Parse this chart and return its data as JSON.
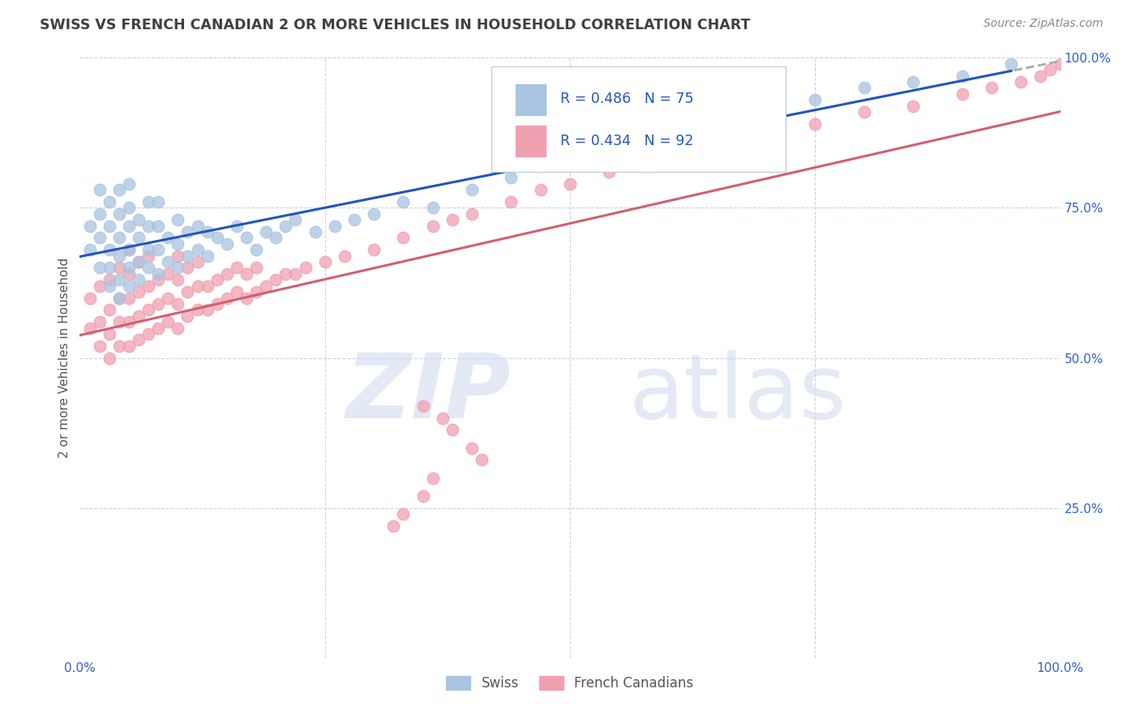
{
  "title": "SWISS VS FRENCH CANADIAN 2 OR MORE VEHICLES IN HOUSEHOLD CORRELATION CHART",
  "source": "Source: ZipAtlas.com",
  "ylabel": "2 or more Vehicles in Household",
  "xlim": [
    0.0,
    1.0
  ],
  "ylim": [
    0.0,
    1.0
  ],
  "swiss_R": 0.486,
  "swiss_N": 75,
  "french_R": 0.434,
  "french_N": 92,
  "swiss_color": "#a8c4e0",
  "french_color": "#f0a0b0",
  "swiss_line_color": "#2255bb",
  "french_line_color": "#d06070",
  "legend_text_color": "#3060d0",
  "title_color": "#404040",
  "grid_color": "#c8d4e8",
  "background_color": "#ffffff",
  "swiss_x": [
    0.01,
    0.01,
    0.02,
    0.02,
    0.02,
    0.02,
    0.03,
    0.03,
    0.03,
    0.03,
    0.03,
    0.04,
    0.04,
    0.04,
    0.04,
    0.04,
    0.04,
    0.05,
    0.05,
    0.05,
    0.05,
    0.05,
    0.05,
    0.06,
    0.06,
    0.06,
    0.06,
    0.07,
    0.07,
    0.07,
    0.07,
    0.08,
    0.08,
    0.08,
    0.08,
    0.09,
    0.09,
    0.1,
    0.1,
    0.1,
    0.11,
    0.11,
    0.12,
    0.12,
    0.13,
    0.13,
    0.14,
    0.15,
    0.16,
    0.17,
    0.18,
    0.19,
    0.2,
    0.21,
    0.22,
    0.24,
    0.26,
    0.28,
    0.3,
    0.33,
    0.36,
    0.4,
    0.44,
    0.47,
    0.5,
    0.54,
    0.57,
    0.61,
    0.65,
    0.7,
    0.75,
    0.8,
    0.85,
    0.9,
    0.95
  ],
  "swiss_y": [
    0.68,
    0.72,
    0.65,
    0.7,
    0.74,
    0.78,
    0.62,
    0.65,
    0.68,
    0.72,
    0.76,
    0.6,
    0.63,
    0.67,
    0.7,
    0.74,
    0.78,
    0.62,
    0.65,
    0.68,
    0.72,
    0.75,
    0.79,
    0.63,
    0.66,
    0.7,
    0.73,
    0.65,
    0.68,
    0.72,
    0.76,
    0.64,
    0.68,
    0.72,
    0.76,
    0.66,
    0.7,
    0.65,
    0.69,
    0.73,
    0.67,
    0.71,
    0.68,
    0.72,
    0.67,
    0.71,
    0.7,
    0.69,
    0.72,
    0.7,
    0.68,
    0.71,
    0.7,
    0.72,
    0.73,
    0.71,
    0.72,
    0.73,
    0.74,
    0.76,
    0.75,
    0.78,
    0.8,
    0.82,
    0.84,
    0.85,
    0.87,
    0.88,
    0.9,
    0.91,
    0.93,
    0.95,
    0.96,
    0.97,
    0.99
  ],
  "french_x": [
    0.01,
    0.01,
    0.02,
    0.02,
    0.02,
    0.03,
    0.03,
    0.03,
    0.03,
    0.04,
    0.04,
    0.04,
    0.04,
    0.05,
    0.05,
    0.05,
    0.05,
    0.05,
    0.06,
    0.06,
    0.06,
    0.06,
    0.07,
    0.07,
    0.07,
    0.07,
    0.08,
    0.08,
    0.08,
    0.09,
    0.09,
    0.09,
    0.1,
    0.1,
    0.1,
    0.1,
    0.11,
    0.11,
    0.11,
    0.12,
    0.12,
    0.12,
    0.13,
    0.13,
    0.14,
    0.14,
    0.15,
    0.15,
    0.16,
    0.16,
    0.17,
    0.17,
    0.18,
    0.18,
    0.19,
    0.2,
    0.21,
    0.22,
    0.23,
    0.25,
    0.27,
    0.3,
    0.33,
    0.36,
    0.38,
    0.4,
    0.44,
    0.47,
    0.5,
    0.54,
    0.58,
    0.62,
    0.66,
    0.7,
    0.75,
    0.8,
    0.85,
    0.9,
    0.93,
    0.96,
    0.98,
    0.99,
    1.0,
    0.35,
    0.37,
    0.38,
    0.4,
    0.41,
    0.36,
    0.35,
    0.33,
    0.32
  ],
  "french_y": [
    0.55,
    0.6,
    0.52,
    0.56,
    0.62,
    0.5,
    0.54,
    0.58,
    0.63,
    0.52,
    0.56,
    0.6,
    0.65,
    0.52,
    0.56,
    0.6,
    0.64,
    0.68,
    0.53,
    0.57,
    0.61,
    0.66,
    0.54,
    0.58,
    0.62,
    0.67,
    0.55,
    0.59,
    0.63,
    0.56,
    0.6,
    0.64,
    0.55,
    0.59,
    0.63,
    0.67,
    0.57,
    0.61,
    0.65,
    0.58,
    0.62,
    0.66,
    0.58,
    0.62,
    0.59,
    0.63,
    0.6,
    0.64,
    0.61,
    0.65,
    0.6,
    0.64,
    0.61,
    0.65,
    0.62,
    0.63,
    0.64,
    0.64,
    0.65,
    0.66,
    0.67,
    0.68,
    0.7,
    0.72,
    0.73,
    0.74,
    0.76,
    0.78,
    0.79,
    0.81,
    0.82,
    0.84,
    0.86,
    0.88,
    0.89,
    0.91,
    0.92,
    0.94,
    0.95,
    0.96,
    0.97,
    0.98,
    0.99,
    0.42,
    0.4,
    0.38,
    0.35,
    0.33,
    0.3,
    0.27,
    0.24,
    0.22
  ]
}
